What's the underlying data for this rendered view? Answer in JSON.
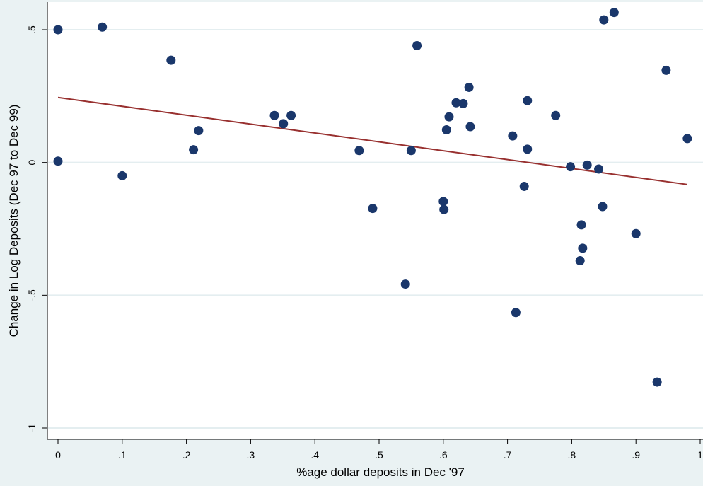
{
  "chart_data": {
    "type": "scatter",
    "title": "",
    "xlabel": "%age dollar deposits in Dec '97",
    "ylabel": "Change in Log Deposits (Dec 97 to Dec 99)",
    "xlim": [
      0,
      1
    ],
    "ylim": [
      -1,
      0.5
    ],
    "x_ticks": [
      {
        "value": 0,
        "label": "0"
      },
      {
        "value": 0.1,
        "label": ".1"
      },
      {
        "value": 0.2,
        "label": ".2"
      },
      {
        "value": 0.3,
        "label": ".3"
      },
      {
        "value": 0.4,
        "label": ".4"
      },
      {
        "value": 0.5,
        "label": ".5"
      },
      {
        "value": 0.6,
        "label": ".6"
      },
      {
        "value": 0.7,
        "label": ".7"
      },
      {
        "value": 0.8,
        "label": ".8"
      },
      {
        "value": 0.9,
        "label": ".9"
      },
      {
        "value": 1,
        "label": "1"
      }
    ],
    "y_ticks": [
      {
        "value": 0.5,
        "label": ".5"
      },
      {
        "value": 0,
        "label": "0"
      },
      {
        "value": -0.5,
        "label": "-.5"
      },
      {
        "value": -1,
        "label": "-1"
      }
    ],
    "grid": "horizontal",
    "colors": {
      "background": "#eaf2f3",
      "plot_area": "#ffffff",
      "gridline": "#e4eef0",
      "points": "#1a376b",
      "fit_line": "#98302f"
    },
    "series": [
      {
        "kind": "points",
        "x": [
          0,
          0,
          0.069,
          0.1,
          0.176,
          0.211,
          0.219,
          0.337,
          0.351,
          0.363,
          0.469,
          0.49,
          0.541,
          0.55,
          0.559,
          0.6,
          0.601,
          0.605,
          0.609,
          0.62,
          0.631,
          0.64,
          0.642,
          0.708,
          0.713,
          0.726,
          0.731,
          0.731,
          0.775,
          0.798,
          0.813,
          0.815,
          0.817,
          0.824,
          0.842,
          0.848,
          0.85,
          0.866,
          0.9,
          0.933,
          0.947,
          0.98
        ],
        "y": [
          0.5,
          0.005,
          0.51,
          -0.05,
          0.385,
          0.048,
          0.12,
          0.177,
          0.146,
          0.177,
          0.045,
          -0.173,
          -0.458,
          0.045,
          0.44,
          -0.147,
          -0.177,
          0.123,
          0.172,
          0.225,
          0.222,
          0.283,
          0.135,
          0.1,
          -0.565,
          -0.09,
          0.233,
          0.05,
          0.177,
          -0.016,
          -0.37,
          -0.235,
          -0.323,
          -0.01,
          -0.025,
          -0.166,
          0.537,
          0.565,
          -0.268,
          -0.827,
          0.347,
          0.09
        ]
      },
      {
        "kind": "fitted_line",
        "x": [
          0,
          0.98
        ],
        "y": [
          0.245,
          -0.083
        ]
      }
    ]
  }
}
